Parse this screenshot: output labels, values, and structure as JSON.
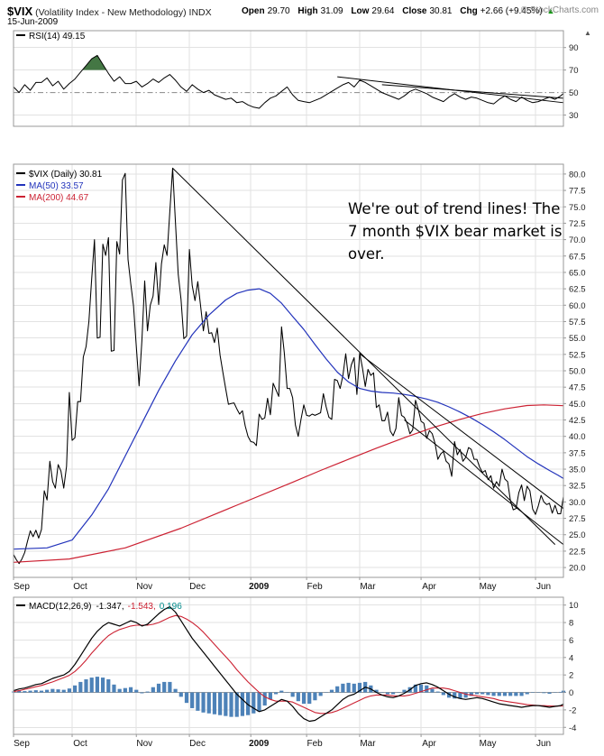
{
  "header": {
    "symbol": "$VIX",
    "subtitle": "(Volatility Index - New Methodology)",
    "exchange": "INDX",
    "date": "15-Jun-2009",
    "copyright": "© StockCharts.com",
    "quote": {
      "open_label": "Open",
      "open": "29.70",
      "high_label": "High",
      "high": "31.09",
      "low_label": "Low",
      "low": "29.64",
      "close_label": "Close",
      "close": "30.81",
      "chg_label": "Chg",
      "chg": "+2.66 (+9.45%)",
      "arrow": "▲"
    }
  },
  "panels": {
    "rsi_label": "RSI(14) 49.15",
    "price_legend": {
      "vix": "$VIX (Daily) 30.81",
      "ma50": "MA(50) 33.57",
      "ma200": "MA(200) 44.67"
    },
    "macd_label": "MACD(12,26,9)",
    "macd_values": {
      "macd": "-1.347,",
      "signal": "-1.543,",
      "hist": "0.196"
    },
    "panel_arrow": "▲"
  },
  "annotation": {
    "line1": "We're out of trend lines! The",
    "line2": "7 month $VIX bear market is",
    "line3": "over."
  },
  "colors": {
    "price": "#000000",
    "ma50": "#2233bb",
    "ma200": "#cc2233",
    "macd_line": "#000000",
    "signal_line": "#cc2233",
    "histogram": "#4d82b8",
    "rsi_fill": "#447744",
    "grid": "#e2e2e2",
    "border": "#999999",
    "chg_arrow": "#009900"
  },
  "chart_data": [
    {
      "id": "rsi",
      "type": "line",
      "label": "RSI(14)",
      "current": 49.15,
      "x_step": 2,
      "ylim": [
        20,
        105
      ],
      "yticks": [
        30,
        50,
        70,
        90
      ],
      "mid_line": 50,
      "fill_above": {
        "level": 70,
        "color": "#447744"
      },
      "values": [
        55,
        50,
        57,
        52,
        59,
        59,
        63,
        56,
        60,
        53,
        58,
        62,
        68,
        74,
        80,
        83,
        75,
        67,
        60,
        64,
        58,
        58,
        60,
        55,
        58,
        62,
        59,
        63,
        66,
        61,
        55,
        51,
        57,
        53,
        50,
        52,
        48,
        46,
        44,
        45,
        41,
        42,
        39,
        37,
        36,
        41,
        45,
        47,
        51,
        55,
        48,
        43,
        42,
        41,
        43,
        45,
        48,
        51,
        54,
        57,
        59,
        55,
        61,
        59,
        56,
        53,
        50,
        48,
        46,
        44,
        47,
        51,
        53,
        51,
        49,
        46,
        44,
        42,
        46,
        49,
        46,
        44,
        46,
        45,
        43,
        41,
        40,
        44,
        47,
        44,
        42,
        46,
        43,
        41,
        42,
        44,
        46,
        44,
        47,
        49.15
      ],
      "trendlines": [
        [
          [
            116,
            64
          ],
          [
            197,
            41
          ]
        ],
        [
          [
            132,
            57
          ],
          [
            197,
            45
          ]
        ]
      ]
    },
    {
      "id": "price",
      "type": "line",
      "x_axis": {
        "labels": [
          "Sep",
          "Oct",
          "Nov",
          "Dec",
          "2009",
          "Feb",
          "Mar",
          "Apr",
          "May",
          "Jun"
        ],
        "starts": [
          0,
          21,
          44,
          63,
          85,
          105,
          124,
          146,
          167,
          187
        ],
        "xmax": 197
      },
      "ylim": [
        18.5,
        81.5
      ],
      "ytick_min": 20,
      "ytick_max": 80,
      "ytick_step": 2.5,
      "series": [
        {
          "name": "$VIX (Daily)",
          "color": "#000000",
          "width": 1.05,
          "x_step": 1,
          "values": [
            21.99,
            21.2,
            20.6,
            21.3,
            22.3,
            24.0,
            25.6,
            24.7,
            25.7,
            24.5,
            25.8,
            31.7,
            30.3,
            36.2,
            33.1,
            32.1,
            35.7,
            34.7,
            32.1,
            35.4,
            46.7,
            39.4,
            39.8,
            45.3,
            45.3,
            52.1,
            53.7,
            57.5,
            64.0,
            70.0,
            55.0,
            55.1,
            69.3,
            67.6,
            70.3,
            53.0,
            53.1,
            69.7,
            67.8,
            79.1,
            80.1,
            67.0,
            63.2,
            59.9,
            53.7,
            47.7,
            54.6,
            63.7,
            56.1,
            60.0,
            61.4,
            66.5,
            60.1,
            66.3,
            69.2,
            67.6,
            74.3,
            80.9,
            72.7,
            64.7,
            60.9,
            54.9,
            55.3,
            68.5,
            63.0,
            60.7,
            63.6,
            59.9,
            56.1,
            59.0,
            55.7,
            55.8,
            54.3,
            56.5,
            52.4,
            49.8,
            47.3,
            44.9,
            45.0,
            45.1,
            44.2,
            43.4,
            43.9,
            41.6,
            40.0,
            39.2,
            39.1,
            38.6,
            43.4,
            42.6,
            42.8,
            45.8,
            43.3,
            48.1,
            47.1,
            46.1,
            56.7,
            52.7,
            47.3,
            47.3,
            45.9,
            41.7,
            40.0,
            42.6,
            44.8,
            43.2,
            43.1,
            43.4,
            43.2,
            43.4,
            43.6,
            46.5,
            44.5,
            42.9,
            42.6,
            48.7,
            48.5,
            47.3,
            49.3,
            52.6,
            48.8,
            50.9,
            52.0,
            46.4,
            52.7,
            50.4,
            47.6,
            50.2,
            49.3,
            49.7,
            44.4,
            44.8,
            42.4,
            42.4,
            43.7,
            40.8,
            40.1,
            41.2,
            45.9,
            43.2,
            42.9,
            42.0,
            40.4,
            41.0,
            45.5,
            44.1,
            42.3,
            42.0,
            39.7,
            40.9,
            40.4,
            38.9,
            36.5,
            37.3,
            37.7,
            36.2,
            35.8,
            33.9,
            39.2,
            37.2,
            38.0,
            36.2,
            36.8,
            38.3,
            38.0,
            36.5,
            36.5,
            35.3,
            34.5,
            34.8,
            33.4,
            34.0,
            32.1,
            33.1,
            32.4,
            35.0,
            33.5,
            33.1,
            30.2,
            28.8,
            29.0,
            31.4,
            32.6,
            30.2,
            32.4,
            31.7,
            28.9,
            28.1,
            29.4,
            31.0,
            30.0,
            29.6,
            29.8,
            28.3,
            29.5,
            28.2,
            28.2,
            30.81
          ]
        },
        {
          "name": "MA(50)",
          "color": "#2233bb",
          "width": 1.2,
          "points": [
            [
              0,
              22.8
            ],
            [
              12,
              23.0
            ],
            [
              21,
              24.2
            ],
            [
              28,
              28.0
            ],
            [
              34,
              32.0
            ],
            [
              40,
              37.0
            ],
            [
              46,
              42.0
            ],
            [
              52,
              47.0
            ],
            [
              58,
              51.5
            ],
            [
              64,
              55.5
            ],
            [
              70,
              58.5
            ],
            [
              76,
              60.8
            ],
            [
              80,
              61.8
            ],
            [
              84,
              62.3
            ],
            [
              88,
              62.5
            ],
            [
              92,
              61.8
            ],
            [
              96,
              60.3
            ],
            [
              100,
              58.3
            ],
            [
              104,
              56.3
            ],
            [
              108,
              54.0
            ],
            [
              112,
              51.8
            ],
            [
              116,
              49.8
            ],
            [
              120,
              48.3
            ],
            [
              124,
              47.3
            ],
            [
              128,
              46.9
            ],
            [
              132,
              46.7
            ],
            [
              136,
              46.6
            ],
            [
              140,
              46.4
            ],
            [
              144,
              46.1
            ],
            [
              148,
              45.7
            ],
            [
              152,
              45.2
            ],
            [
              156,
              44.5
            ],
            [
              160,
              43.7
            ],
            [
              164,
              42.8
            ],
            [
              168,
              41.8
            ],
            [
              172,
              40.7
            ],
            [
              176,
              39.5
            ],
            [
              180,
              38.2
            ],
            [
              184,
              36.9
            ],
            [
              188,
              35.8
            ],
            [
              192,
              34.8
            ],
            [
              195,
              34.1
            ],
            [
              197,
              33.57
            ]
          ]
        },
        {
          "name": "MA(200)",
          "color": "#cc2233",
          "width": 1.2,
          "points": [
            [
              0,
              20.8
            ],
            [
              20,
              21.3
            ],
            [
              40,
              23.0
            ],
            [
              60,
              26.0
            ],
            [
              80,
              29.5
            ],
            [
              100,
              33.0
            ],
            [
              110,
              34.8
            ],
            [
              120,
              36.5
            ],
            [
              130,
              38.2
            ],
            [
              140,
              39.8
            ],
            [
              150,
              41.3
            ],
            [
              160,
              42.6
            ],
            [
              168,
              43.5
            ],
            [
              176,
              44.2
            ],
            [
              184,
              44.7
            ],
            [
              190,
              44.8
            ],
            [
              197,
              44.67
            ]
          ]
        }
      ],
      "trendlines": [
        [
          [
            57,
            80.9
          ],
          [
            194,
            23.5
          ]
        ],
        [
          [
            124,
            52.6
          ],
          [
            197,
            29.0
          ]
        ],
        [
          [
            140,
            42.5
          ],
          [
            197,
            23.5
          ]
        ]
      ]
    },
    {
      "id": "macd",
      "type": "line+histogram",
      "label": "MACD(12,26,9)",
      "current": {
        "macd": -1.347,
        "signal": -1.543,
        "hist": 0.196
      },
      "x_step": 2,
      "ylim": [
        -4.8,
        10.9
      ],
      "yticks": [
        -4,
        -2,
        0,
        2,
        4,
        6,
        8,
        10
      ],
      "macd_color": "#000000",
      "signal_color": "#cc2233",
      "hist_color": "#4d82b8",
      "macd": [
        0.2,
        0.4,
        0.5,
        0.7,
        0.9,
        1.0,
        1.3,
        1.6,
        1.8,
        2.0,
        2.4,
        3.2,
        4.2,
        5.2,
        6.2,
        7.0,
        7.6,
        8.0,
        7.8,
        7.6,
        7.9,
        8.2,
        8.0,
        7.6,
        7.8,
        8.4,
        9.0,
        9.5,
        9.8,
        9.2,
        8.2,
        7.2,
        6.2,
        5.4,
        4.6,
        3.8,
        3.0,
        2.2,
        1.4,
        0.6,
        -0.2,
        -0.8,
        -1.4,
        -1.8,
        -2.2,
        -2.0,
        -1.6,
        -1.2,
        -0.8,
        -1.0,
        -1.6,
        -2.4,
        -3.0,
        -3.3,
        -3.2,
        -2.8,
        -2.4,
        -2.0,
        -1.4,
        -0.8,
        -0.4,
        -0.2,
        0.2,
        0.6,
        0.4,
        0.0,
        -0.3,
        -0.5,
        -0.6,
        -0.4,
        -0.1,
        0.3,
        0.8,
        1.0,
        1.1,
        0.9,
        0.6,
        0.2,
        -0.2,
        -0.5,
        -0.7,
        -0.8,
        -0.7,
        -0.6,
        -0.7,
        -0.9,
        -1.1,
        -1.3,
        -1.4,
        -1.5,
        -1.6,
        -1.7,
        -1.6,
        -1.5,
        -1.5,
        -1.6,
        -1.7,
        -1.6,
        -1.5,
        -1.347
      ],
      "signal": [
        0.1,
        0.2,
        0.35,
        0.5,
        0.65,
        0.8,
        1.0,
        1.2,
        1.45,
        1.7,
        1.95,
        2.4,
        3.0,
        3.7,
        4.5,
        5.2,
        5.9,
        6.5,
        6.9,
        7.2,
        7.4,
        7.6,
        7.7,
        7.7,
        7.7,
        7.8,
        8.0,
        8.3,
        8.6,
        8.8,
        8.7,
        8.4,
        8.0,
        7.5,
        6.9,
        6.2,
        5.5,
        4.8,
        4.1,
        3.4,
        2.6,
        1.9,
        1.2,
        0.6,
        0.0,
        -0.5,
        -0.8,
        -1.0,
        -1.0,
        -1.0,
        -1.1,
        -1.4,
        -1.7,
        -2.0,
        -2.3,
        -2.4,
        -2.4,
        -2.3,
        -2.1,
        -1.8,
        -1.5,
        -1.2,
        -0.9,
        -0.6,
        -0.4,
        -0.3,
        -0.3,
        -0.3,
        -0.4,
        -0.4,
        -0.4,
        -0.3,
        -0.1,
        0.1,
        0.3,
        0.5,
        0.5,
        0.5,
        0.4,
        0.2,
        0.0,
        -0.2,
        -0.3,
        -0.4,
        -0.5,
        -0.6,
        -0.7,
        -0.9,
        -1.0,
        -1.1,
        -1.2,
        -1.3,
        -1.4,
        -1.45,
        -1.5,
        -1.52,
        -1.55,
        -1.57,
        -1.56,
        -1.543
      ]
    }
  ]
}
